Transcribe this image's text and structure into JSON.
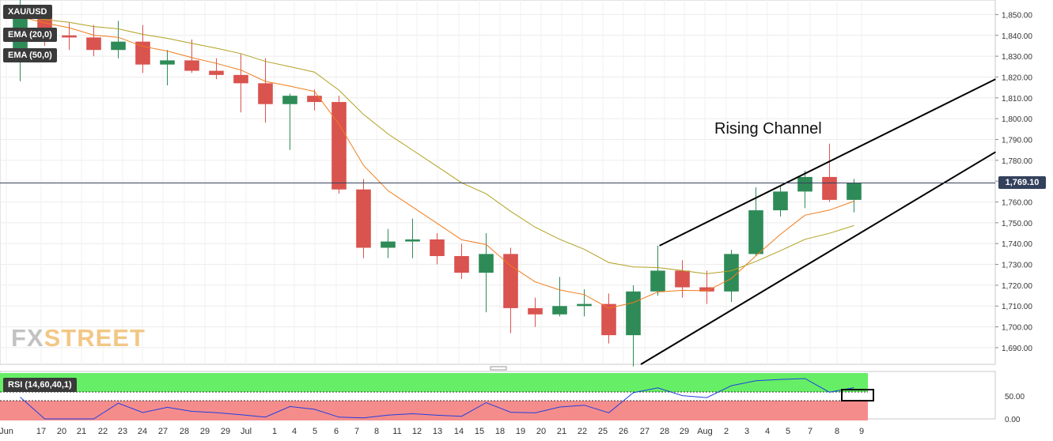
{
  "chart_data": {
    "type": "candlestick",
    "symbol": "XAU/USD",
    "indicators": [
      "EMA (20,0)",
      "EMA (50,0)"
    ],
    "rsi_label": "RSI (14,60,40,1)",
    "annotation": "Rising Channel",
    "watermark": {
      "part1": "FX",
      "part2": "STREET"
    },
    "current_price": 1769.1,
    "current_price_label": "1,769.10",
    "price_axis_ticks": [
      1850,
      1840,
      1830,
      1820,
      1810,
      1800,
      1790,
      1780,
      1770,
      1760,
      1750,
      1740,
      1730,
      1720,
      1710,
      1700,
      1690
    ],
    "price_axis_labels": [
      "1,850.00",
      "1,840.00",
      "1,830.00",
      "1,820.00",
      "1,810.00",
      "1,800.00",
      "1,790.00",
      "1,780.00",
      "1,770.00",
      "1,760.00",
      "1,750.00",
      "1,740.00",
      "1,730.00",
      "1,720.00",
      "1,710.00",
      "1,700.00",
      "1,690.00"
    ],
    "ylim": [
      1682,
      1857
    ],
    "rsi_axis_labels": [
      "50.00",
      "0.00"
    ],
    "x_tick_labels": [
      "Jun",
      "17",
      "20",
      "21",
      "22",
      "23",
      "24",
      "27",
      "28",
      "29",
      "29",
      "Jul",
      "1",
      "4",
      "5",
      "6",
      "7",
      "8",
      "11",
      "12",
      "13",
      "14",
      "15",
      "18",
      "19",
      "20",
      "21",
      "22",
      "25",
      "26",
      "27",
      "28",
      "29",
      "Aug",
      "2",
      "3",
      "4",
      "5",
      "7",
      "8",
      "9"
    ],
    "channel_upper": [
      {
        "t": "2022-07-22",
        "price": 1739
      },
      {
        "t": "2022-08-09",
        "price": 1819
      }
    ],
    "channel_lower": [
      {
        "t": "2022-07-21",
        "price": 1682
      },
      {
        "t": "2022-08-09",
        "price": 1784
      }
    ],
    "daily_ohlc": [
      {
        "date": "Jun 16",
        "o": 1832,
        "h": 1857,
        "l": 1818,
        "c": 1849
      },
      {
        "date": "Jun 17",
        "o": 1849,
        "h": 1851,
        "l": 1835,
        "c": 1840
      },
      {
        "date": "Jun 20",
        "o": 1840,
        "h": 1846,
        "l": 1833,
        "c": 1839
      },
      {
        "date": "Jun 21",
        "o": 1839,
        "h": 1845,
        "l": 1830,
        "c": 1833
      },
      {
        "date": "Jun 22",
        "o": 1833,
        "h": 1847,
        "l": 1829,
        "c": 1837
      },
      {
        "date": "Jun 23",
        "o": 1837,
        "h": 1845,
        "l": 1822,
        "c": 1826
      },
      {
        "date": "Jun 24",
        "o": 1826,
        "h": 1833,
        "l": 1816,
        "c": 1828
      },
      {
        "date": "Jun 27",
        "o": 1828,
        "h": 1838,
        "l": 1822,
        "c": 1823
      },
      {
        "date": "Jun 28",
        "o": 1823,
        "h": 1829,
        "l": 1819,
        "c": 1821
      },
      {
        "date": "Jun 29",
        "o": 1821,
        "h": 1831,
        "l": 1803,
        "c": 1817
      },
      {
        "date": "Jun 30",
        "o": 1817,
        "h": 1829,
        "l": 1798,
        "c": 1807
      },
      {
        "date": "Jul 01",
        "o": 1807,
        "h": 1812,
        "l": 1785,
        "c": 1811
      },
      {
        "date": "Jul 04",
        "o": 1811,
        "h": 1814,
        "l": 1804,
        "c": 1808
      },
      {
        "date": "Jul 05",
        "o": 1808,
        "h": 1811,
        "l": 1764,
        "c": 1766
      },
      {
        "date": "Jul 06",
        "o": 1766,
        "h": 1771,
        "l": 1733,
        "c": 1738
      },
      {
        "date": "Jul 07",
        "o": 1738,
        "h": 1747,
        "l": 1733,
        "c": 1741
      },
      {
        "date": "Jul 08",
        "o": 1741,
        "h": 1752,
        "l": 1733,
        "c": 1742
      },
      {
        "date": "Jul 11",
        "o": 1742,
        "h": 1745,
        "l": 1730,
        "c": 1734
      },
      {
        "date": "Jul 12",
        "o": 1734,
        "h": 1740,
        "l": 1723,
        "c": 1726
      },
      {
        "date": "Jul 13",
        "o": 1726,
        "h": 1745,
        "l": 1707,
        "c": 1735
      },
      {
        "date": "Jul 14",
        "o": 1735,
        "h": 1738,
        "l": 1697,
        "c": 1709
      },
      {
        "date": "Jul 15",
        "o": 1709,
        "h": 1714,
        "l": 1700,
        "c": 1706
      },
      {
        "date": "Jul 18",
        "o": 1706,
        "h": 1724,
        "l": 1705,
        "c": 1710
      },
      {
        "date": "Jul 19",
        "o": 1710,
        "h": 1718,
        "l": 1705,
        "c": 1711
      },
      {
        "date": "Jul 20",
        "o": 1711,
        "h": 1716,
        "l": 1692,
        "c": 1696
      },
      {
        "date": "Jul 21",
        "o": 1696,
        "h": 1720,
        "l": 1681,
        "c": 1717
      },
      {
        "date": "Jul 22",
        "o": 1717,
        "h": 1739,
        "l": 1715,
        "c": 1727
      },
      {
        "date": "Jul 25",
        "o": 1727,
        "h": 1732,
        "l": 1714,
        "c": 1719
      },
      {
        "date": "Jul 26",
        "o": 1719,
        "h": 1727,
        "l": 1711,
        "c": 1717
      },
      {
        "date": "Jul 27",
        "o": 1717,
        "h": 1737,
        "l": 1712,
        "c": 1735
      },
      {
        "date": "Jul 28",
        "o": 1735,
        "h": 1767,
        "l": 1734,
        "c": 1756
      },
      {
        "date": "Jul 29",
        "o": 1756,
        "h": 1768,
        "l": 1753,
        "c": 1765
      },
      {
        "date": "Aug 01",
        "o": 1765,
        "h": 1775,
        "l": 1757,
        "c": 1772
      },
      {
        "date": "Aug 02",
        "o": 1772,
        "h": 1788,
        "l": 1760,
        "c": 1761
      },
      {
        "date": "Aug 03",
        "o": 1761,
        "h": 1771,
        "l": 1755,
        "c": 1769
      }
    ]
  }
}
